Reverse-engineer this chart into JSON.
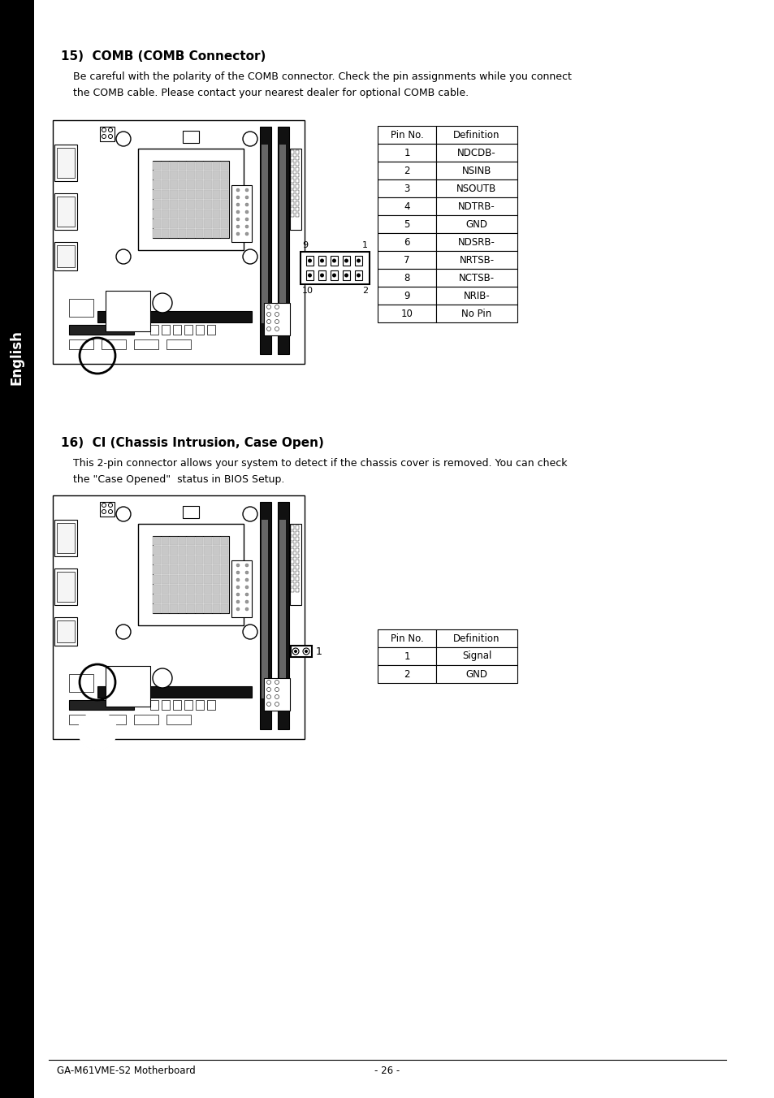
{
  "page_bg": "#ffffff",
  "sidebar_color": "#000000",
  "sidebar_text": "English",
  "section15_title": "15)  COMB (COMB Connector)",
  "section15_body1": "Be careful with the polarity of the COMB connector. Check the pin assignments while you connect",
  "section15_body2": "the COMB cable. Please contact your nearest dealer for optional COMB cable.",
  "section16_title": "16)  CI (Chassis Intrusion, Case Open)",
  "section16_body1": "This 2-pin connector allows your system to detect if the chassis cover is removed. You can check",
  "section16_body2": "the \"Case Opened\"  status in BIOS Setup.",
  "table15_headers": [
    "Pin No.",
    "Definition"
  ],
  "table15_rows": [
    [
      "1",
      "NDCDB-"
    ],
    [
      "2",
      "NSINB"
    ],
    [
      "3",
      "NSOUTB"
    ],
    [
      "4",
      "NDTRB-"
    ],
    [
      "5",
      "GND"
    ],
    [
      "6",
      "NDSRB-"
    ],
    [
      "7",
      "NRTSB-"
    ],
    [
      "8",
      "NCTSB-"
    ],
    [
      "9",
      "NRIB-"
    ],
    [
      "10",
      "No Pin"
    ]
  ],
  "table16_headers": [
    "Pin No.",
    "Definition"
  ],
  "table16_rows": [
    [
      "1",
      "Signal"
    ],
    [
      "2",
      "GND"
    ]
  ],
  "footer_left": "GA-M61VME-S2 Motherboard",
  "footer_center": "- 26 -",
  "connector15_label_tl": "9",
  "connector15_label_tr": "1",
  "connector15_label_bl": "10",
  "connector15_label_br": "2",
  "connector16_label": "1"
}
